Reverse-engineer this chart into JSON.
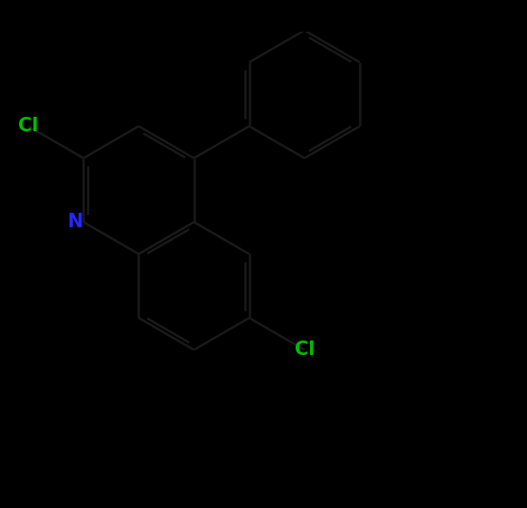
{
  "bg_color": "#000000",
  "bond_color": "#1a1a1a",
  "N_color": "#2626ff",
  "Cl_color": "#00bb00",
  "bond_width": 1.8,
  "font_size": 15,
  "figsize": [
    5.83,
    5.61
  ],
  "dpi": 100,
  "xlim": [
    -1.0,
    8.5
  ],
  "ylim": [
    -3.5,
    4.5
  ]
}
